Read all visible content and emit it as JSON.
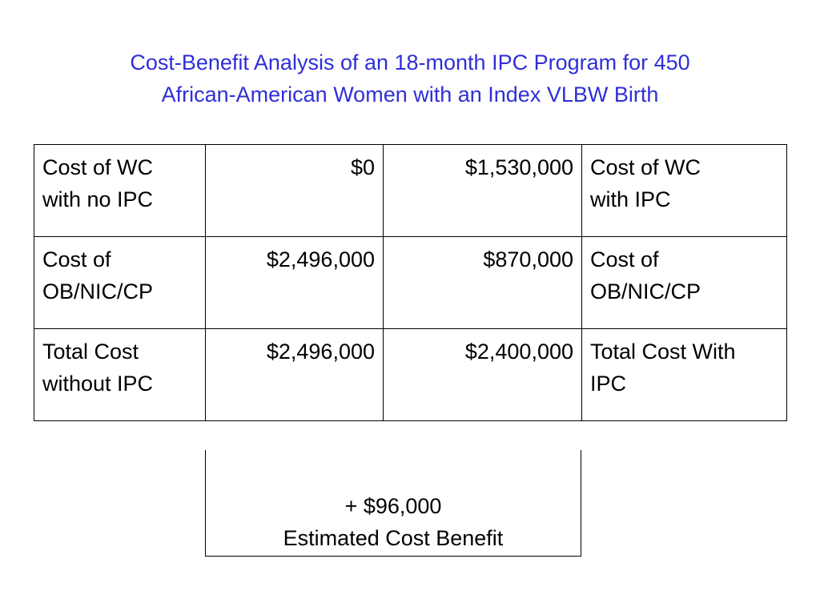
{
  "title": {
    "line1": "Cost-Benefit Analysis of an 18-month IPC Program for 450",
    "line2": "African-American Women with an Index VLBW Birth"
  },
  "table": {
    "rows": [
      {
        "left_label": [
          "Cost of WC",
          "with no IPC"
        ],
        "without_ipc": "$0",
        "with_ipc": "$1,530,000",
        "right_label": [
          "Cost of WC",
          "with IPC"
        ]
      },
      {
        "left_label": [
          "Cost of",
          "OB/NIC/CP"
        ],
        "without_ipc": "$2,496,000",
        "with_ipc": "$870,000",
        "right_label": [
          "Cost of",
          "OB/NIC/CP"
        ]
      },
      {
        "left_label": [
          "Total Cost",
          "without IPC"
        ],
        "without_ipc": "$2,496,000",
        "with_ipc": "$2,400,000",
        "right_label": [
          "Total Cost With",
          "IPC"
        ]
      }
    ]
  },
  "benefit": {
    "amount": "+ $96,000",
    "label": "Estimated Cost Benefit"
  }
}
